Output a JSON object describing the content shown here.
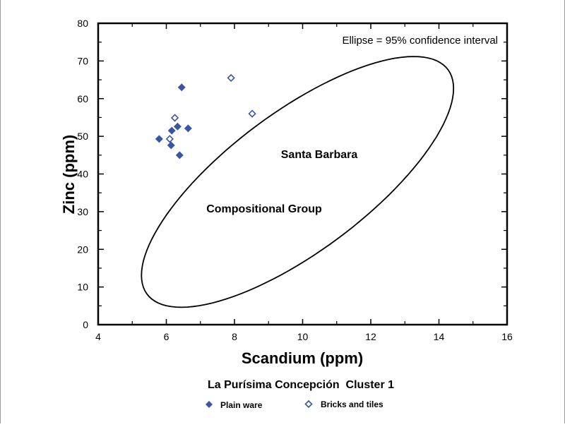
{
  "chart_data": {
    "type": "scatter",
    "title": "La Purísima Concepción  Cluster 1",
    "xlabel": "Scandium (ppm)",
    "ylabel": "Zinc (ppm)",
    "xlim": [
      4,
      16
    ],
    "ylim": [
      0,
      80
    ],
    "x_ticks": [
      4,
      6,
      8,
      10,
      12,
      14,
      16
    ],
    "y_ticks": [
      0,
      10,
      20,
      30,
      40,
      50,
      60,
      70,
      80
    ],
    "grid": false,
    "annotation": "Ellipse = 95% confidence interval",
    "group_label_line1": "Santa Barbara",
    "group_label_line2": "Compositional Group",
    "ellipse": {
      "center": [
        9.85,
        37.9
      ],
      "conjugate_axis_1": [
        4.58,
        24.8
      ],
      "conjugate_axis_2": [
        0,
        22.2
      ]
    },
    "legend_position": "bottom",
    "series": [
      {
        "name": "Plain ware",
        "marker": "filled-diamond",
        "color": "#3a55a4",
        "points": [
          [
            6.45,
            63
          ],
          [
            6.33,
            52.6
          ],
          [
            6.16,
            51.5
          ],
          [
            6.64,
            52.1
          ],
          [
            5.79,
            49.3
          ],
          [
            6.14,
            47.6
          ],
          [
            6.39,
            45
          ]
        ]
      },
      {
        "name": "Bricks and tiles",
        "marker": "open-diamond",
        "color": "#3a55a4",
        "points": [
          [
            7.9,
            65.5
          ],
          [
            8.52,
            56
          ],
          [
            6.25,
            54.9
          ],
          [
            6.1,
            49.3
          ]
        ]
      }
    ]
  }
}
